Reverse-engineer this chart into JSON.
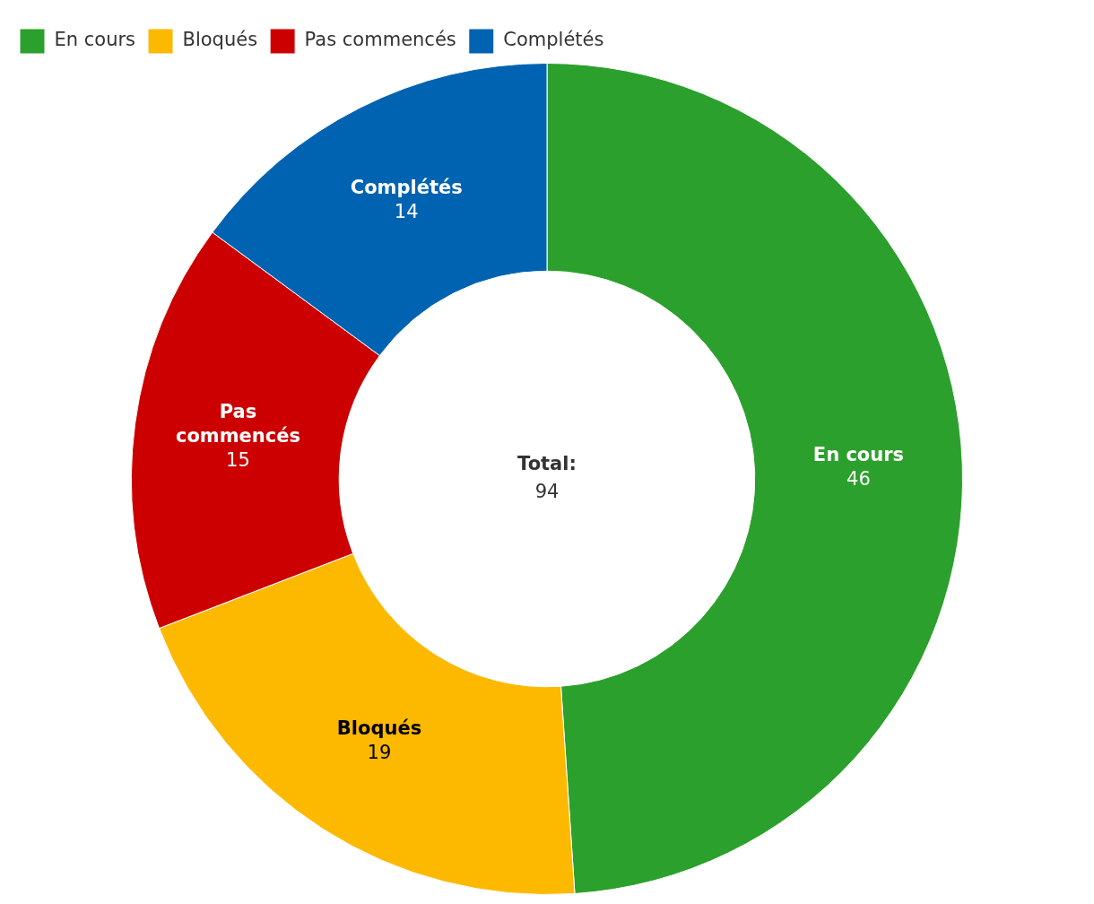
{
  "chart_data": {
    "type": "donut",
    "categories": [
      "En cours",
      "Bloqués",
      "Pas commencés",
      "Complétés"
    ],
    "values": [
      46,
      19,
      15,
      14
    ],
    "colors": [
      "#2ca02c",
      "#fdb900",
      "#cc0000",
      "#0063b1"
    ],
    "data_labels": true,
    "legend": "top left",
    "annotations": [
      "Total:",
      "94"
    ]
  }
}
